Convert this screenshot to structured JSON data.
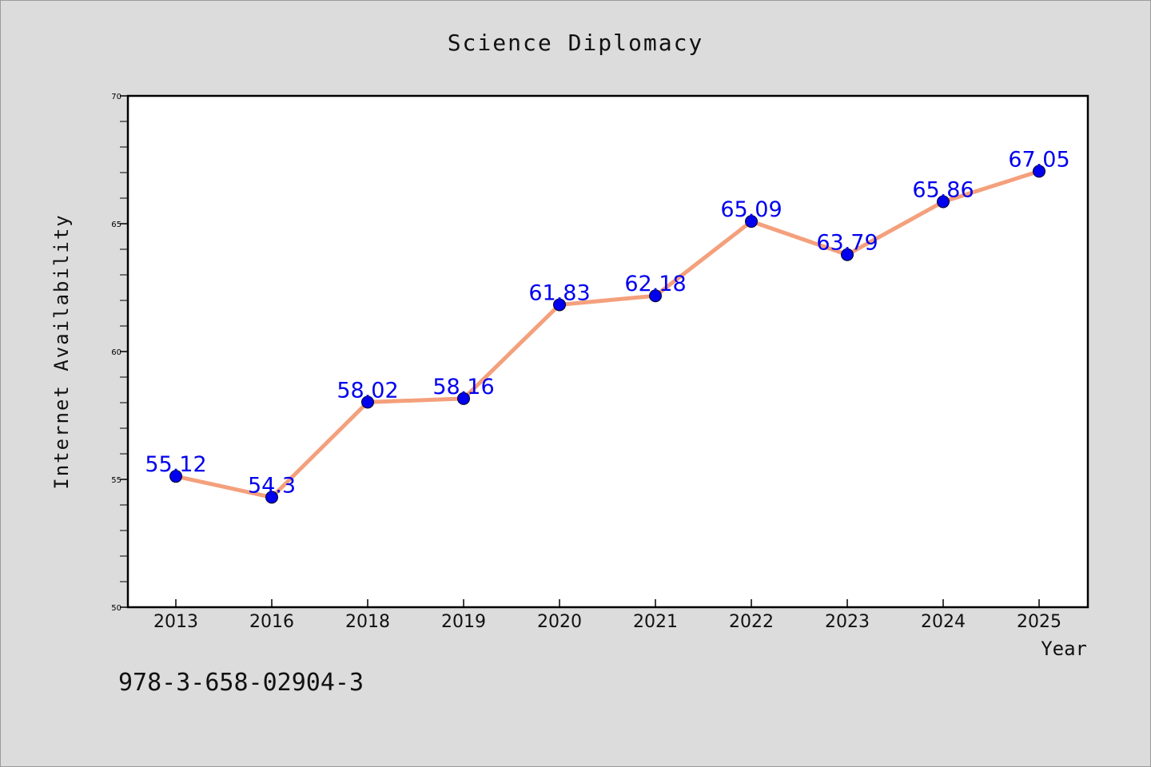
{
  "chart_data": {
    "type": "line",
    "title": "Science Diplomacy",
    "xlabel": "Year",
    "ylabel": "Internet Availability",
    "categories": [
      "2013",
      "2016",
      "2018",
      "2019",
      "2020",
      "2021",
      "2022",
      "2023",
      "2024",
      "2025"
    ],
    "series": [
      {
        "values": [
          55.12,
          54.3,
          58.02,
          58.16,
          61.83,
          62.18,
          65.09,
          63.79,
          65.86,
          67.05
        ],
        "labels": [
          "55.12",
          "54.3",
          "58.02",
          "58.16",
          "61.83",
          "62.18",
          "65.09",
          "63.79",
          "65.86",
          "67.05"
        ]
      }
    ],
    "ylim": [
      50,
      70
    ],
    "yticks": [
      "50",
      "55",
      "60",
      "65",
      "70"
    ],
    "grid": false,
    "line_color": "#f4a07c",
    "marker_color": "#0000ee",
    "label_color": "#0000ee",
    "annotation": "978-3-658-02904-3"
  }
}
